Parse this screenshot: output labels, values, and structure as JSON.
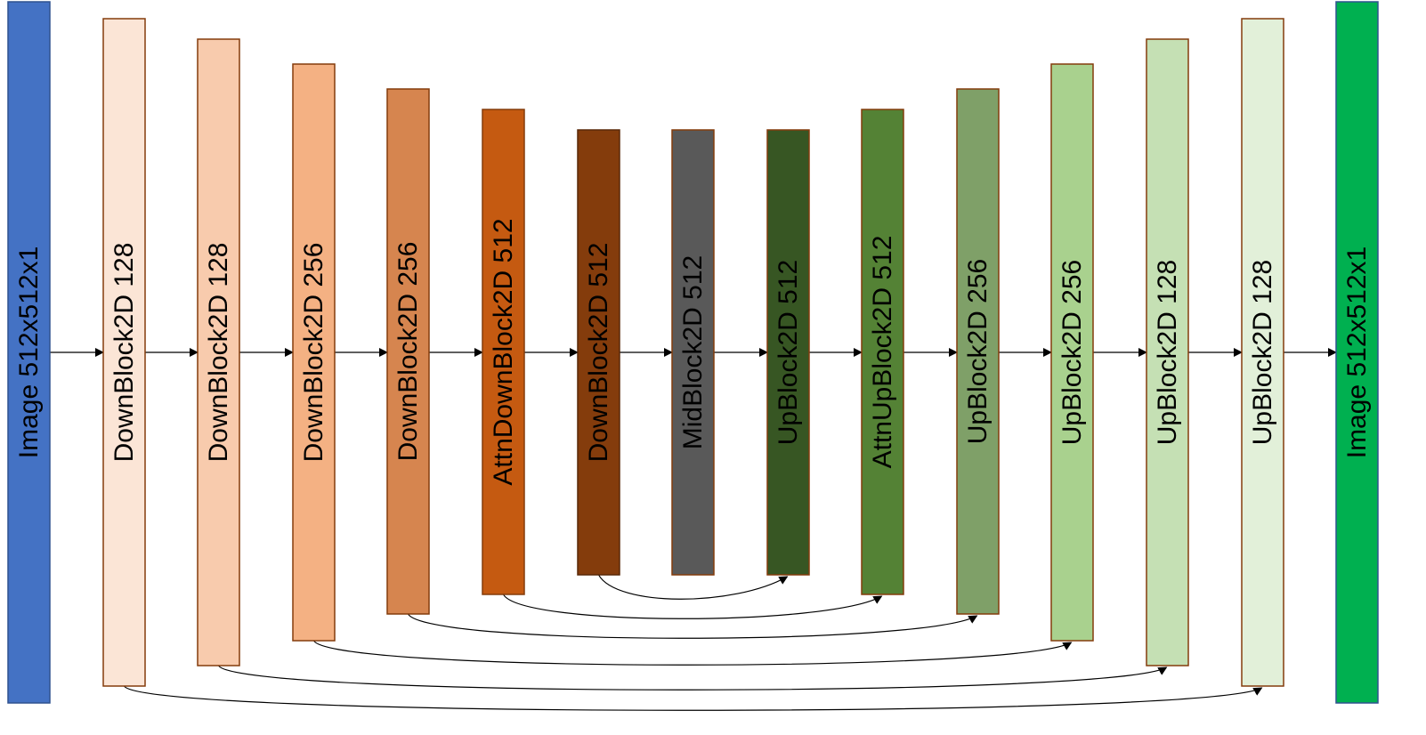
{
  "diagram": {
    "blocks": [
      {
        "label": "Image 512x512x1",
        "fill": "#4472C4",
        "text_color": "#000000",
        "stroke": "#2F528F"
      },
      {
        "label": "DownBlock2D 128",
        "fill": "#FBE5D6",
        "text_color": "#000000",
        "stroke": "#843C0C"
      },
      {
        "label": "DownBlock2D 128",
        "fill": "#F8CBAD",
        "text_color": "#000000",
        "stroke": "#843C0C"
      },
      {
        "label": "DownBlock2D 256",
        "fill": "#F4B183",
        "text_color": "#000000",
        "stroke": "#843C0C"
      },
      {
        "label": "DownBlock2D 256",
        "fill": "#D6854F",
        "text_color": "#000000",
        "stroke": "#843C0C"
      },
      {
        "label": "AttnDownBlock2D 512",
        "fill": "#C55A11",
        "text_color": "#000000",
        "stroke": "#843C0C"
      },
      {
        "label": "DownBlock2D 512",
        "fill": "#843C0C",
        "text_color": "#000000",
        "stroke": "#5A2808"
      },
      {
        "label": "MidBlock2D 512",
        "fill": "#595959",
        "text_color": "#000000",
        "stroke": "#843C0C"
      },
      {
        "label": "UpBlock2D 512",
        "fill": "#375623",
        "text_color": "#000000",
        "stroke": "#843C0C"
      },
      {
        "label": "AttnUpBlock2D 512",
        "fill": "#548235",
        "text_color": "#000000",
        "stroke": "#843C0C"
      },
      {
        "label": "UpBlock2D 256",
        "fill": "#7FA068",
        "text_color": "#000000",
        "stroke": "#843C0C"
      },
      {
        "label": "UpBlock2D 256",
        "fill": "#A9D18E",
        "text_color": "#000000",
        "stroke": "#843C0C"
      },
      {
        "label": "UpBlock2D 128",
        "fill": "#C5E0B4",
        "text_color": "#000000",
        "stroke": "#843C0C"
      },
      {
        "label": "UpBlock2D 128",
        "fill": "#E2F0D9",
        "text_color": "#000000",
        "stroke": "#843C0C"
      },
      {
        "label": "Image 512x512x1",
        "fill": "#00B050",
        "text_color": "#000000",
        "stroke": "#2F528F"
      }
    ],
    "skip_connections": [
      {
        "from": 6,
        "to": 8
      },
      {
        "from": 5,
        "to": 9
      },
      {
        "from": 4,
        "to": 10
      },
      {
        "from": 3,
        "to": 11
      },
      {
        "from": 2,
        "to": 12
      },
      {
        "from": 1,
        "to": 13
      }
    ],
    "arrow_color": "#000000"
  }
}
